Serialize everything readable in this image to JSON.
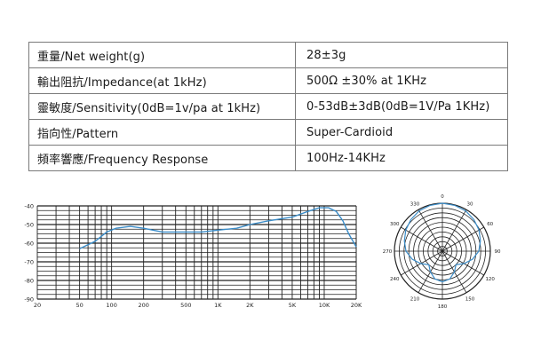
{
  "specs": {
    "rows": [
      {
        "label": "重量/Net weight(g)",
        "value": "28±3g"
      },
      {
        "label": "輸出阻抗/Impedance(at 1kHz)",
        "value": "500Ω ±30% at 1KHz"
      },
      {
        "label": "靈敏度/Sensitivity(0dB=1v/pa at 1kHz)",
        "value": "0-53dB±3dB(0dB=1V/Pa 1KHz)"
      },
      {
        "label": "指向性/Pattern",
        "value": "Super-Cardioid"
      },
      {
        "label": "頻率響應/Frequency Response",
        "value": "100Hz-14KHz"
      }
    ]
  },
  "chart_data": [
    {
      "type": "line",
      "x_scale": "log",
      "xlim": [
        20,
        20000
      ],
      "ylim": [
        -90,
        -40
      ],
      "x_tick_labels": [
        {
          "x": 20,
          "label": "20"
        },
        {
          "x": 50,
          "label": "50"
        },
        {
          "x": 100,
          "label": "100"
        },
        {
          "x": 200,
          "label": "200"
        },
        {
          "x": 500,
          "label": "500"
        },
        {
          "x": 1000,
          "label": "1K"
        },
        {
          "x": 2000,
          "label": "2K"
        },
        {
          "x": 5000,
          "label": "5K"
        },
        {
          "x": 10000,
          "label": "10K"
        },
        {
          "x": 20000,
          "label": "20K"
        }
      ],
      "y_tick_labels": [
        {
          "y": -40,
          "label": "-40"
        },
        {
          "y": -50,
          "label": "-50"
        },
        {
          "y": -60,
          "label": "-60"
        },
        {
          "y": -70,
          "label": "-70"
        },
        {
          "y": -80,
          "label": "-80"
        },
        {
          "y": -90,
          "label": "-90"
        }
      ],
      "grid": true,
      "series": [
        {
          "color": "#3a8cc8",
          "points": [
            [
              50,
              -63
            ],
            [
              70,
              -59
            ],
            [
              90,
              -54
            ],
            [
              110,
              -52
            ],
            [
              150,
              -51
            ],
            [
              200,
              -52
            ],
            [
              300,
              -54
            ],
            [
              500,
              -54
            ],
            [
              700,
              -54
            ],
            [
              1000,
              -53
            ],
            [
              1500,
              -52
            ],
            [
              2000,
              -50
            ],
            [
              3000,
              -48
            ],
            [
              5000,
              -46
            ],
            [
              7000,
              -43
            ],
            [
              9000,
              -41
            ],
            [
              11000,
              -41
            ],
            [
              13000,
              -43
            ],
            [
              15000,
              -48
            ],
            [
              17000,
              -55
            ],
            [
              20000,
              -62
            ]
          ]
        }
      ]
    },
    {
      "type": "polar",
      "angle_labels": [
        {
          "deg": 0,
          "label": "0"
        },
        {
          "deg": 30,
          "label": "30"
        },
        {
          "deg": 60,
          "label": "60"
        },
        {
          "deg": 90,
          "label": "90"
        },
        {
          "deg": 120,
          "label": "120"
        },
        {
          "deg": 150,
          "label": "150"
        },
        {
          "deg": 180,
          "label": "180"
        },
        {
          "deg": 210,
          "label": "210"
        },
        {
          "deg": 240,
          "label": "240"
        },
        {
          "deg": 270,
          "label": "270"
        },
        {
          "deg": 300,
          "label": "300"
        },
        {
          "deg": 330,
          "label": "330"
        }
      ],
      "rings": 10,
      "spokes_deg": 30,
      "grid": true,
      "series": [
        {
          "color": "#3a8cc8",
          "points": [
            [
              0,
              1.0
            ],
            [
              15,
              0.99
            ],
            [
              30,
              0.97
            ],
            [
              45,
              0.93
            ],
            [
              60,
              0.88
            ],
            [
              75,
              0.82
            ],
            [
              90,
              0.76
            ],
            [
              105,
              0.65
            ],
            [
              120,
              0.52
            ],
            [
              135,
              0.4
            ],
            [
              150,
              0.5
            ],
            [
              165,
              0.6
            ],
            [
              180,
              0.64
            ],
            [
              195,
              0.6
            ],
            [
              210,
              0.5
            ],
            [
              225,
              0.4
            ],
            [
              240,
              0.52
            ],
            [
              255,
              0.65
            ],
            [
              270,
              0.76
            ],
            [
              285,
              0.82
            ],
            [
              300,
              0.88
            ],
            [
              315,
              0.93
            ],
            [
              330,
              0.97
            ],
            [
              345,
              0.99
            ]
          ]
        }
      ]
    }
  ]
}
